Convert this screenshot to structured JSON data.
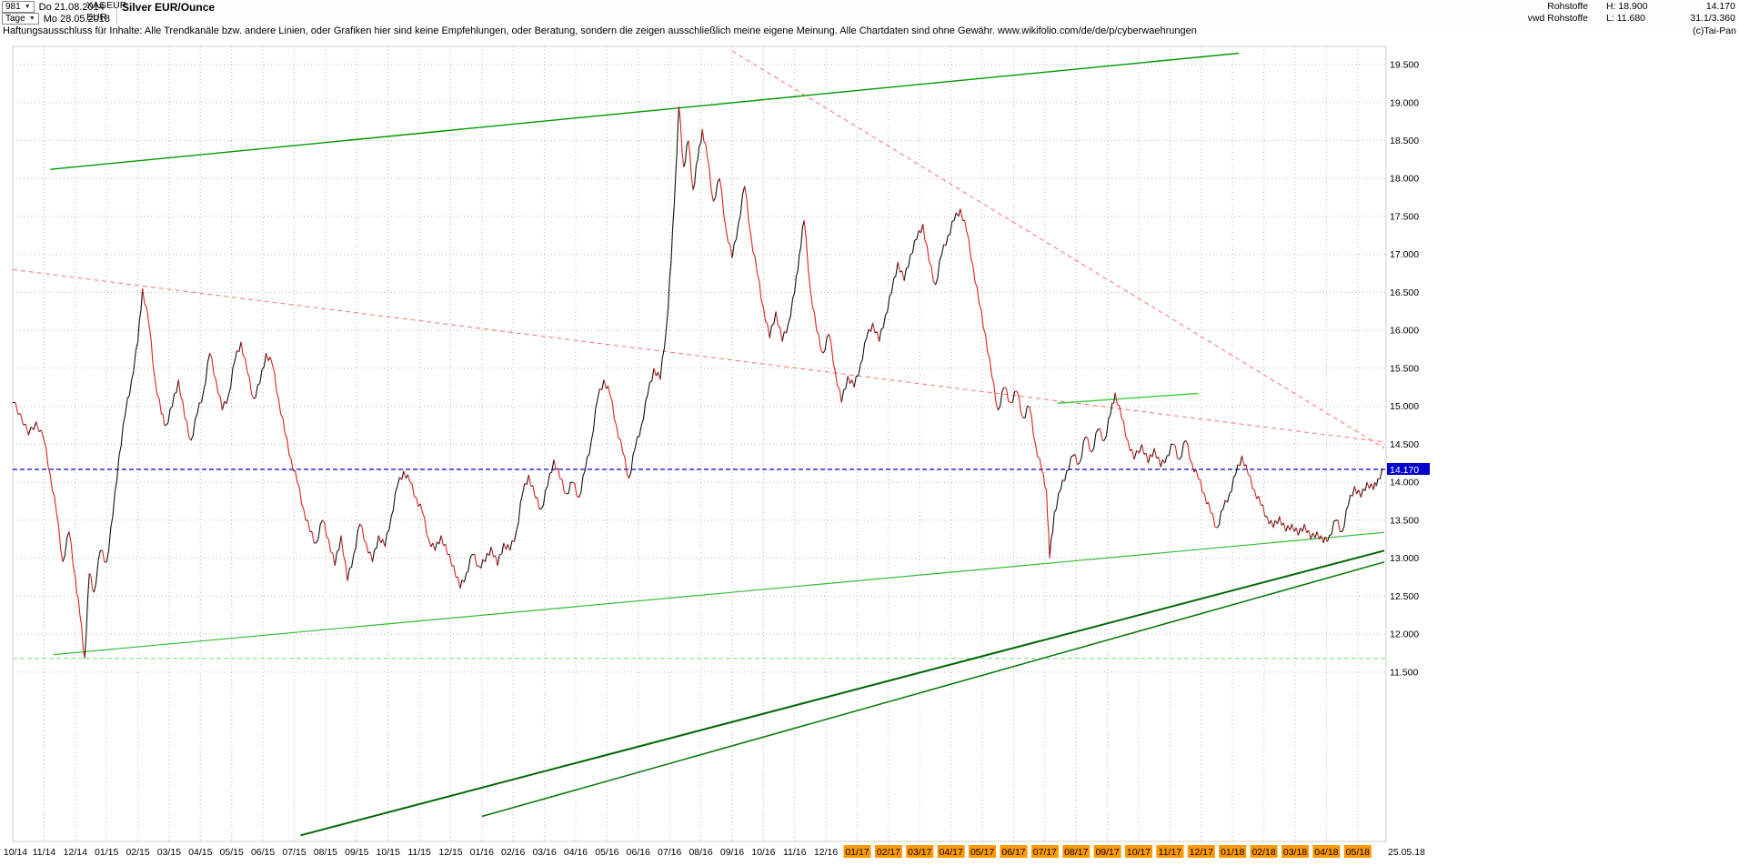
{
  "header": {
    "bars_count": "981",
    "start_date": "Do 21.08.2014",
    "period": "Tage",
    "end_date": "Mo 28.05.2018",
    "symbol": "XAGEUR",
    "currency": "EUR",
    "title": "Silver EUR/Ounce",
    "right": {
      "category": "Rohstoffe",
      "source": "vwd Rohstoffe",
      "high": "H: 18.900",
      "low": "L: 11.680",
      "last_price": "14.170",
      "unit_info": "31.1/3.360",
      "copyright": "(c)Tai-Pan"
    }
  },
  "disclaimer": {
    "text": "Haftungsausschluss für Inhalte: Alle Trendkanäle bzw. andere Linien, oder Grafiken hier sind keine Empfehlungen, oder Beratung, sondern die zeigen ausschließlich meine eigene Meinung. Alle Chartdaten sind ohne Gewähr.",
    "url": "www.wikifolio.com/de/de/p/cyberwaehrungen"
  },
  "chart_data": {
    "type": "line",
    "title": "Silver EUR/Ounce",
    "symbol": "XAGEUR",
    "currency": "EUR",
    "period": "Tage (daily)",
    "high": 18.9,
    "low": 11.68,
    "last_price": 14.17,
    "x_unit": "months since 2014-10",
    "x_range": [
      0,
      43.85
    ],
    "y_render_range": [
      9.27,
      19.74
    ],
    "x_labels": [
      "10/14",
      "11/14",
      "12/14",
      "01/15",
      "02/15",
      "03/15",
      "04/15",
      "05/15",
      "06/15",
      "07/15",
      "08/15",
      "09/15",
      "10/15",
      "11/15",
      "12/15",
      "01/16",
      "02/16",
      "03/16",
      "04/16",
      "05/16",
      "06/16",
      "07/16",
      "08/16",
      "09/16",
      "10/16",
      "11/16",
      "12/16",
      "01/17",
      "02/17",
      "03/17",
      "04/17",
      "05/17",
      "06/17",
      "07/17",
      "08/17",
      "09/17",
      "10/17",
      "11/17",
      "12/17",
      "01/18",
      "02/18",
      "03/18",
      "04/18",
      "05/18"
    ],
    "x_highlight_from_index": 27,
    "x_end_label": "25.05.18",
    "y_ticks": [
      19.5,
      19,
      18.5,
      18,
      17.5,
      17,
      16.5,
      16,
      15.5,
      15,
      14.5,
      14,
      13.5,
      13,
      12.5,
      12,
      11.5
    ],
    "y_tick_labels": [
      "19.500",
      "19.000",
      "18.500",
      "18.000",
      "17.500",
      "17.000",
      "16.500",
      "16.000",
      "15.500",
      "15.000",
      "14.500",
      "14.000",
      "13.500",
      "13.000",
      "12.500",
      "12.000",
      "11.500"
    ],
    "colors": {
      "up": "#111111",
      "down": "#dd2020",
      "grid": "#b8b8b8",
      "price_marker": "#0000cc",
      "x_highlight": "#ff9900",
      "trend_green": "#009900",
      "trend_dark_green": "#006600",
      "trend_light_green": "#44cc44",
      "trend_red_dashed": "#ff7070",
      "low_line_green": "#88dd88"
    },
    "horizontal_lines": [
      {
        "name": "last-price-line",
        "price": 14.17,
        "color": "#0000dd",
        "style": "dashed",
        "label": "14.170"
      },
      {
        "name": "low-support-line",
        "price": 11.68,
        "color": "#88dd88",
        "style": "dashed",
        "label": ""
      }
    ],
    "trend_lines": [
      {
        "name": "upper-green-channel",
        "x1": 1.2,
        "p1": 18.12,
        "x2": 39.2,
        "p2": 19.65,
        "color": "#009900",
        "width": 1.4,
        "dash": ""
      },
      {
        "name": "descending-resistance-1",
        "x1": 0,
        "p1": 16.8,
        "x2": 43.85,
        "p2": 14.53,
        "color": "#ff7070",
        "width": 1,
        "dash": "5 4"
      },
      {
        "name": "descending-resistance-2",
        "x1": 23,
        "p1": 19.68,
        "x2": 43.85,
        "p2": 14.45,
        "color": "#ff7070",
        "width": 1,
        "dash": "5 4"
      },
      {
        "name": "rising-support-1",
        "x1": 1.3,
        "p1": 11.73,
        "x2": 43.85,
        "p2": 13.34,
        "color": "#33bb33",
        "width": 1.2,
        "dash": ""
      },
      {
        "name": "rising-support-2",
        "x1": 9.2,
        "p1": 9.35,
        "x2": 43.85,
        "p2": 13.1,
        "color": "#006600",
        "width": 2,
        "dash": ""
      },
      {
        "name": "rising-support-3",
        "x1": 15,
        "p1": 9.6,
        "x2": 43.85,
        "p2": 12.95,
        "color": "#007700",
        "width": 1.5,
        "dash": ""
      },
      {
        "name": "mid-resistance",
        "x1": 33.4,
        "p1": 15.04,
        "x2": 37.9,
        "p2": 15.17,
        "color": "#44cc44",
        "width": 1.5,
        "dash": ""
      }
    ],
    "series": [
      [
        0,
        15.05
      ],
      [
        0.25,
        14.9
      ],
      [
        0.5,
        14.62
      ],
      [
        0.75,
        14.8
      ],
      [
        1,
        14.55
      ],
      [
        1.2,
        14.1
      ],
      [
        1.4,
        13.6
      ],
      [
        1.6,
        12.95
      ],
      [
        1.8,
        13.35
      ],
      [
        2,
        12.75
      ],
      [
        2.15,
        12.25
      ],
      [
        2.3,
        11.68
      ],
      [
        2.45,
        12.8
      ],
      [
        2.6,
        12.55
      ],
      [
        2.8,
        13.1
      ],
      [
        3,
        12.95
      ],
      [
        3.2,
        13.55
      ],
      [
        3.4,
        14.35
      ],
      [
        3.6,
        14.9
      ],
      [
        3.8,
        15.35
      ],
      [
        4,
        15.85
      ],
      [
        4.15,
        16.55
      ],
      [
        4.35,
        16.1
      ],
      [
        4.55,
        15.35
      ],
      [
        4.75,
        14.9
      ],
      [
        4.9,
        14.75
      ],
      [
        5.1,
        15
      ],
      [
        5.3,
        15.35
      ],
      [
        5.5,
        14.85
      ],
      [
        5.7,
        14.55
      ],
      [
        5.9,
        14.9
      ],
      [
        6.1,
        15.2
      ],
      [
        6.3,
        15.7
      ],
      [
        6.5,
        15.35
      ],
      [
        6.7,
        14.95
      ],
      [
        6.9,
        15.15
      ],
      [
        7.1,
        15.6
      ],
      [
        7.3,
        15.85
      ],
      [
        7.5,
        15.45
      ],
      [
        7.7,
        15.1
      ],
      [
        7.9,
        15.3
      ],
      [
        8.1,
        15.7
      ],
      [
        8.3,
        15.55
      ],
      [
        8.5,
        15.1
      ],
      [
        8.7,
        14.65
      ],
      [
        8.9,
        14.3
      ],
      [
        9.1,
        14
      ],
      [
        9.3,
        13.65
      ],
      [
        9.5,
        13.35
      ],
      [
        9.7,
        13.2
      ],
      [
        9.9,
        13.5
      ],
      [
        10.1,
        13.25
      ],
      [
        10.3,
        12.9
      ],
      [
        10.5,
        13.3
      ],
      [
        10.7,
        12.7
      ],
      [
        10.9,
        13.05
      ],
      [
        11.1,
        13.45
      ],
      [
        11.3,
        13.2
      ],
      [
        11.5,
        12.95
      ],
      [
        11.7,
        13.3
      ],
      [
        11.9,
        13.15
      ],
      [
        12.1,
        13.55
      ],
      [
        12.3,
        13.95
      ],
      [
        12.5,
        14.15
      ],
      [
        12.7,
        14
      ],
      [
        12.9,
        13.8
      ],
      [
        13.1,
        13.6
      ],
      [
        13.3,
        13.25
      ],
      [
        13.5,
        13.1
      ],
      [
        13.7,
        13.3
      ],
      [
        13.9,
        13.05
      ],
      [
        14.1,
        12.9
      ],
      [
        14.3,
        12.6
      ],
      [
        14.5,
        12.8
      ],
      [
        14.7,
        13.05
      ],
      [
        14.9,
        12.9
      ],
      [
        15.1,
        12.95
      ],
      [
        15.3,
        13.15
      ],
      [
        15.5,
        12.9
      ],
      [
        15.7,
        13.2
      ],
      [
        15.9,
        13.1
      ],
      [
        16.1,
        13.35
      ],
      [
        16.3,
        13.85
      ],
      [
        16.5,
        14.1
      ],
      [
        16.7,
        13.8
      ],
      [
        16.9,
        13.65
      ],
      [
        17.1,
        13.95
      ],
      [
        17.3,
        14.3
      ],
      [
        17.5,
        14.05
      ],
      [
        17.7,
        13.85
      ],
      [
        17.9,
        14
      ],
      [
        18.1,
        13.8
      ],
      [
        18.3,
        14.15
      ],
      [
        18.5,
        14.55
      ],
      [
        18.7,
        15.1
      ],
      [
        18.9,
        15.35
      ],
      [
        19.1,
        15.15
      ],
      [
        19.3,
        14.75
      ],
      [
        19.5,
        14.4
      ],
      [
        19.7,
        14.05
      ],
      [
        19.9,
        14.45
      ],
      [
        20.1,
        14.75
      ],
      [
        20.3,
        15.15
      ],
      [
        20.5,
        15.5
      ],
      [
        20.7,
        15.35
      ],
      [
        20.9,
        16.05
      ],
      [
        21.05,
        16.9
      ],
      [
        21.2,
        18.1
      ],
      [
        21.3,
        18.95
      ],
      [
        21.45,
        18.15
      ],
      [
        21.6,
        18.5
      ],
      [
        21.75,
        17.85
      ],
      [
        21.9,
        18.25
      ],
      [
        22.05,
        18.65
      ],
      [
        22.2,
        18.3
      ],
      [
        22.4,
        17.7
      ],
      [
        22.6,
        18
      ],
      [
        22.8,
        17.35
      ],
      [
        23,
        16.95
      ],
      [
        23.2,
        17.4
      ],
      [
        23.4,
        17.9
      ],
      [
        23.6,
        17.25
      ],
      [
        23.8,
        16.75
      ],
      [
        24,
        16.3
      ],
      [
        24.2,
        15.9
      ],
      [
        24.4,
        16.25
      ],
      [
        24.6,
        15.85
      ],
      [
        24.8,
        16.1
      ],
      [
        25,
        16.5
      ],
      [
        25.15,
        17
      ],
      [
        25.3,
        17.45
      ],
      [
        25.5,
        16.55
      ],
      [
        25.7,
        16
      ],
      [
        25.9,
        15.7
      ],
      [
        26.1,
        15.95
      ],
      [
        26.3,
        15.45
      ],
      [
        26.5,
        15.05
      ],
      [
        26.7,
        15.4
      ],
      [
        26.9,
        15.25
      ],
      [
        27.1,
        15.55
      ],
      [
        27.3,
        15.9
      ],
      [
        27.5,
        16.1
      ],
      [
        27.7,
        15.85
      ],
      [
        27.9,
        16.2
      ],
      [
        28.1,
        16.5
      ],
      [
        28.3,
        16.9
      ],
      [
        28.5,
        16.65
      ],
      [
        28.7,
        17
      ],
      [
        28.9,
        17.2
      ],
      [
        29.1,
        17.4
      ],
      [
        29.3,
        16.9
      ],
      [
        29.5,
        16.6
      ],
      [
        29.7,
        17
      ],
      [
        29.9,
        17.25
      ],
      [
        30.1,
        17.45
      ],
      [
        30.3,
        17.6
      ],
      [
        30.5,
        17.3
      ],
      [
        30.7,
        16.85
      ],
      [
        30.9,
        16.35
      ],
      [
        31.1,
        15.95
      ],
      [
        31.3,
        15.4
      ],
      [
        31.5,
        14.95
      ],
      [
        31.7,
        15.25
      ],
      [
        31.9,
        15.05
      ],
      [
        32.1,
        15.2
      ],
      [
        32.3,
        14.85
      ],
      [
        32.5,
        15
      ],
      [
        32.7,
        14.5
      ],
      [
        32.9,
        14.15
      ],
      [
        33.05,
        13.9
      ],
      [
        33.15,
        13
      ],
      [
        33.3,
        13.6
      ],
      [
        33.5,
        13.9
      ],
      [
        33.7,
        14.15
      ],
      [
        33.9,
        14.35
      ],
      [
        34.1,
        14.25
      ],
      [
        34.3,
        14.6
      ],
      [
        34.5,
        14.4
      ],
      [
        34.7,
        14.7
      ],
      [
        34.9,
        14.55
      ],
      [
        35.1,
        14.9
      ],
      [
        35.25,
        15.18
      ],
      [
        35.45,
        14.85
      ],
      [
        35.65,
        14.55
      ],
      [
        35.85,
        14.3
      ],
      [
        36.1,
        14.5
      ],
      [
        36.3,
        14.25
      ],
      [
        36.5,
        14.45
      ],
      [
        36.7,
        14.2
      ],
      [
        36.9,
        14.35
      ],
      [
        37.1,
        14.5
      ],
      [
        37.3,
        14.3
      ],
      [
        37.5,
        14.55
      ],
      [
        37.7,
        14.25
      ],
      [
        37.9,
        14.05
      ],
      [
        38.1,
        13.85
      ],
      [
        38.3,
        13.6
      ],
      [
        38.5,
        13.4
      ],
      [
        38.7,
        13.65
      ],
      [
        38.9,
        13.85
      ],
      [
        39.1,
        14.1
      ],
      [
        39.3,
        14.35
      ],
      [
        39.5,
        14.1
      ],
      [
        39.7,
        13.9
      ],
      [
        39.9,
        13.7
      ],
      [
        40.1,
        13.55
      ],
      [
        40.3,
        13.4
      ],
      [
        40.5,
        13.55
      ],
      [
        40.7,
        13.35
      ],
      [
        40.9,
        13.45
      ],
      [
        41.1,
        13.3
      ],
      [
        41.3,
        13.45
      ],
      [
        41.5,
        13.25
      ],
      [
        41.7,
        13.35
      ],
      [
        41.9,
        13.2
      ],
      [
        42.1,
        13.3
      ],
      [
        42.3,
        13.5
      ],
      [
        42.5,
        13.35
      ],
      [
        42.7,
        13.7
      ],
      [
        42.9,
        13.95
      ],
      [
        43.1,
        13.8
      ],
      [
        43.3,
        14
      ],
      [
        43.5,
        13.9
      ],
      [
        43.65,
        14.05
      ],
      [
        43.85,
        14.17
      ]
    ]
  }
}
